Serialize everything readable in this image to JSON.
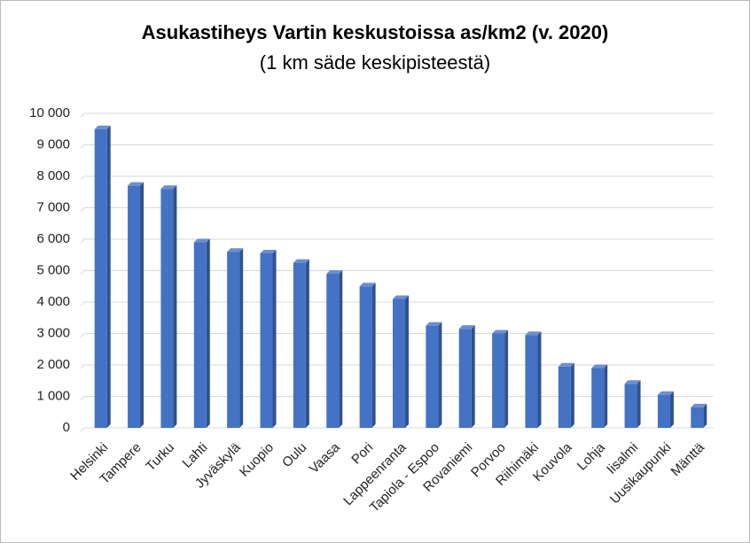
{
  "chart_data": {
    "type": "bar3d",
    "title": "Asukastiheys Vartin keskustoissa as/km2 (v. 2020)",
    "subtitle": "(1 km säde keskipisteestä)",
    "categories": [
      "Helsinki",
      "Tampere",
      "Turku",
      "Lahti",
      "Jyväskylä",
      "Kuopio",
      "Oulu",
      "Vaasa",
      "Pori",
      "Lappeenranta",
      "Tapiola - Espoo",
      "Rovaniemi",
      "Porvoo",
      "Riihimäki",
      "Kouvola",
      "Lohja",
      "Iisalmi",
      "Uusikaupunki",
      "Mänttä"
    ],
    "values": [
      9500,
      7700,
      7600,
      5900,
      5600,
      5550,
      5250,
      4900,
      4500,
      4100,
      3250,
      3150,
      3000,
      2950,
      1950,
      1900,
      1400,
      1050,
      650
    ],
    "color": "#4472c4",
    "ylim": [
      0,
      10000
    ],
    "yticks": [
      0,
      {
        "value": 1000,
        "label": "1 000"
      },
      {
        "value": 2000,
        "label": "2 000"
      },
      {
        "value": 3000,
        "label": "3 000"
      },
      {
        "value": 4000,
        "label": "4 000"
      },
      {
        "value": 5000,
        "label": "5 000"
      },
      {
        "value": 6000,
        "label": "6 000"
      },
      {
        "value": 7000,
        "label": "7 000"
      },
      {
        "value": 8000,
        "label": "8 000"
      },
      {
        "value": 9000,
        "label": "9 000"
      },
      {
        "value": 10000,
        "label": "10 000"
      }
    ],
    "grid": true
  }
}
